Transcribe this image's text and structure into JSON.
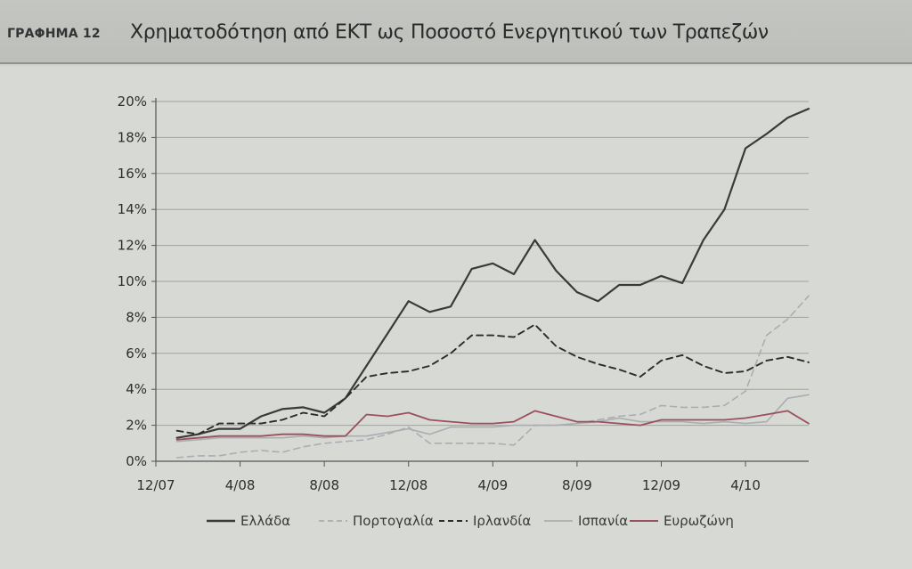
{
  "header": {
    "figure_label": "ΓΡΑΦΗΜΑ 12",
    "title": "Χρηματοδότηση από ΕΚΤ ως Ποσοστό Ενεργητικού των Τραπεζών"
  },
  "chart_data": {
    "type": "line",
    "title": "Χρηματοδότηση από ΕΚΤ ως Ποσοστό Ενεργητικού των Τραπεζών",
    "xlabel": "",
    "ylabel": "",
    "ylim": [
      0,
      20
    ],
    "yticks": [
      {
        "value": 0,
        "label": "0%"
      },
      {
        "value": 2,
        "label": "2%"
      },
      {
        "value": 4,
        "label": "4%"
      },
      {
        "value": 6,
        "label": "6%"
      },
      {
        "value": 8,
        "label": "8%"
      },
      {
        "value": 10,
        "label": "10%"
      },
      {
        "value": 12,
        "label": "12%"
      },
      {
        "value": 14,
        "label": "14%"
      },
      {
        "value": 16,
        "label": "16%"
      },
      {
        "value": 18,
        "label": "18%"
      },
      {
        "value": 20,
        "label": "20%"
      }
    ],
    "xticks": [
      {
        "value": 0,
        "label": "12/07"
      },
      {
        "value": 4,
        "label": "4/08"
      },
      {
        "value": 8,
        "label": "8/08"
      },
      {
        "value": 12,
        "label": "12/08"
      },
      {
        "value": 16,
        "label": "4/09"
      },
      {
        "value": 20,
        "label": "8/09"
      },
      {
        "value": 24,
        "label": "12/09"
      },
      {
        "value": 28,
        "label": "4/10"
      }
    ],
    "xlim": [
      0,
      31
    ],
    "x": [
      1,
      2,
      3,
      4,
      5,
      6,
      7,
      8,
      9,
      10,
      11,
      12,
      13,
      14,
      15,
      16,
      17,
      18,
      19,
      20,
      21,
      22,
      23,
      24,
      25,
      26,
      27,
      28,
      29,
      30,
      31
    ],
    "grid": true,
    "legend_position": "bottom",
    "series": [
      {
        "name": "Ελλάδα",
        "color": "#3a3a3a",
        "dash": "solid",
        "width": 2.2,
        "values": [
          1.3,
          1.5,
          1.8,
          1.8,
          2.5,
          2.9,
          3.0,
          2.7,
          3.5,
          5.3,
          7.1,
          8.9,
          8.3,
          8.6,
          10.7,
          11.0,
          10.4,
          12.3,
          10.6,
          9.4,
          8.9,
          9.8,
          9.8,
          10.3,
          9.9,
          12.3,
          14.0,
          17.4,
          18.2,
          19.1,
          19.6
        ]
      },
      {
        "name": "Πορτογαλία",
        "color": "#a9aeb2",
        "dash": "dashed",
        "width": 1.6,
        "values": [
          0.2,
          0.3,
          0.3,
          0.5,
          0.6,
          0.5,
          0.8,
          1.0,
          1.1,
          1.2,
          1.5,
          1.9,
          1.0,
          1.0,
          1.0,
          1.0,
          0.9,
          2.0,
          2.0,
          2.1,
          2.3,
          2.5,
          2.6,
          3.1,
          3.0,
          3.0,
          3.1,
          3.9,
          7.0,
          7.9,
          9.2
        ]
      },
      {
        "name": "Ιρλανδία",
        "color": "#2b2b2b",
        "dash": "dashed",
        "width": 1.9,
        "values": [
          1.7,
          1.5,
          2.1,
          2.1,
          2.1,
          2.3,
          2.7,
          2.5,
          3.5,
          4.7,
          4.9,
          5.0,
          5.3,
          6.0,
          7.0,
          7.0,
          6.9,
          7.6,
          6.4,
          5.8,
          5.4,
          5.1,
          4.7,
          5.6,
          5.9,
          5.3,
          4.9,
          5.0,
          5.6,
          5.8,
          5.5
        ]
      },
      {
        "name": "Ισπανία",
        "color": "#aaaeb1",
        "dash": "solid",
        "width": 1.6,
        "values": [
          1.1,
          1.2,
          1.3,
          1.3,
          1.3,
          1.3,
          1.4,
          1.3,
          1.4,
          1.4,
          1.6,
          1.8,
          1.5,
          1.9,
          1.9,
          1.9,
          2.0,
          2.0,
          2.0,
          2.1,
          2.2,
          2.4,
          2.2,
          2.2,
          2.2,
          2.1,
          2.2,
          2.1,
          2.2,
          3.5,
          3.7
        ]
      },
      {
        "name": "Ευρωζώνη",
        "color": "#9c4f5c",
        "dash": "solid",
        "width": 1.8,
        "values": [
          1.2,
          1.3,
          1.4,
          1.4,
          1.4,
          1.5,
          1.5,
          1.4,
          1.4,
          2.6,
          2.5,
          2.7,
          2.3,
          2.2,
          2.1,
          2.1,
          2.2,
          2.8,
          2.5,
          2.2,
          2.2,
          2.1,
          2.0,
          2.3,
          2.3,
          2.3,
          2.3,
          2.4,
          2.6,
          2.8,
          2.1
        ]
      }
    ]
  }
}
